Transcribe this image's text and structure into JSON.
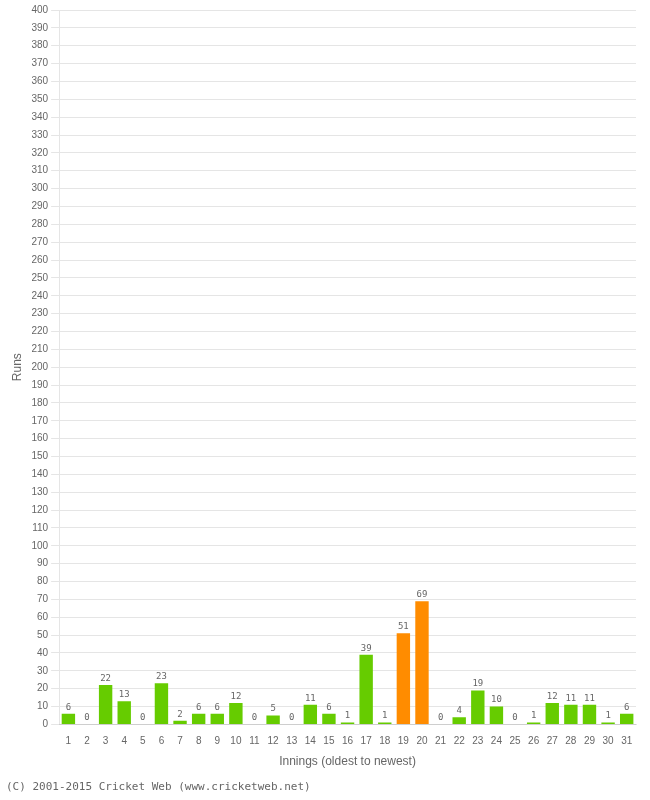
{
  "chart_data": {
    "type": "bar",
    "categories": [
      "1",
      "2",
      "3",
      "4",
      "5",
      "6",
      "7",
      "8",
      "9",
      "10",
      "11",
      "12",
      "13",
      "14",
      "15",
      "16",
      "17",
      "18",
      "19",
      "20",
      "21",
      "22",
      "23",
      "24",
      "25",
      "26",
      "27",
      "28",
      "29",
      "30",
      "31"
    ],
    "values": [
      6,
      0,
      22,
      13,
      0,
      23,
      2,
      6,
      6,
      12,
      0,
      5,
      0,
      11,
      6,
      1,
      39,
      1,
      51,
      69,
      0,
      4,
      19,
      10,
      0,
      1,
      12,
      11,
      11,
      1,
      6
    ],
    "colors": [
      "#66cc00",
      "#66cc00",
      "#66cc00",
      "#66cc00",
      "#66cc00",
      "#66cc00",
      "#66cc00",
      "#66cc00",
      "#66cc00",
      "#66cc00",
      "#66cc00",
      "#66cc00",
      "#66cc00",
      "#66cc00",
      "#66cc00",
      "#66cc00",
      "#66cc00",
      "#66cc00",
      "#ff8c00",
      "#ff8c00",
      "#66cc00",
      "#66cc00",
      "#66cc00",
      "#66cc00",
      "#66cc00",
      "#66cc00",
      "#66cc00",
      "#66cc00",
      "#66cc00",
      "#66cc00",
      "#66cc00"
    ],
    "xlabel": "Innings (oldest to newest)",
    "ylabel": "Runs",
    "ylim": [
      0,
      400
    ],
    "yticks": [
      0,
      10,
      20,
      30,
      40,
      50,
      60,
      70,
      80,
      90,
      100,
      110,
      120,
      130,
      140,
      150,
      160,
      170,
      180,
      190,
      200,
      210,
      220,
      230,
      240,
      250,
      260,
      270,
      280,
      290,
      300,
      310,
      320,
      330,
      340,
      350,
      360,
      370,
      380,
      390,
      400
    ],
    "grid": true,
    "data_labels": true,
    "annotations": [
      "(C) 2001-2015 Cricket Web (www.cricketweb.net)"
    ]
  }
}
